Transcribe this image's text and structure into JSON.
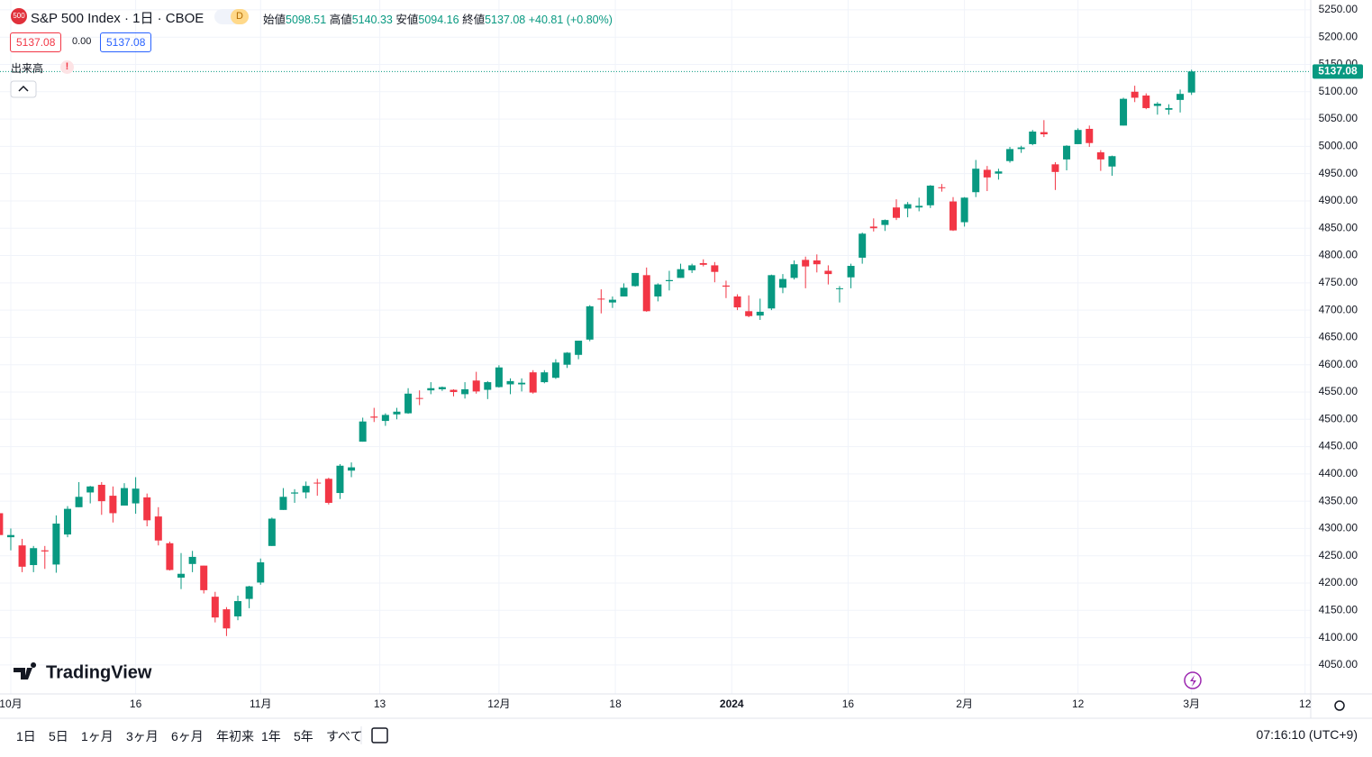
{
  "header": {
    "badge": "500",
    "symbol": "S&P 500 Index · 1日 · CBOE",
    "interval": "D",
    "open_label": "始値",
    "high_label": "高値",
    "low_label": "安値",
    "close_label": "終値",
    "change": "+40.81 (+0.80%)",
    "bid": "5137.08",
    "spread": "0.00",
    "ask": "5137.08",
    "volume_label": "出来高"
  },
  "chart_data": {
    "type": "candlestick",
    "watermark": "TradingView",
    "up_color": "#089981",
    "down_color": "#f23645",
    "grid": true,
    "x": [
      -1,
      0,
      1,
      2,
      3,
      4,
      5,
      6,
      7,
      8,
      9,
      10,
      11,
      12,
      13,
      14,
      15,
      16,
      17,
      18,
      19,
      20,
      21,
      22,
      23,
      24,
      25,
      26,
      27,
      28,
      29,
      30,
      31,
      32,
      33,
      34,
      35,
      36,
      37,
      38,
      39,
      40,
      41,
      42,
      43,
      44,
      45,
      46,
      47,
      48,
      49,
      50,
      51,
      52,
      53,
      54,
      55,
      56,
      57,
      58,
      59,
      60,
      61,
      62,
      63,
      64,
      65,
      66,
      67,
      68,
      69,
      70,
      71,
      72,
      73,
      74,
      75,
      76,
      77,
      78,
      79,
      80,
      81,
      82,
      83,
      84,
      85,
      86,
      87,
      88,
      89,
      90,
      91,
      92,
      93,
      94,
      95,
      96,
      97,
      98,
      99,
      100,
      101,
      102,
      103,
      104
    ],
    "open": [
      4328,
      4284,
      4269,
      4233,
      4260,
      4234,
      4289,
      4339,
      4366,
      4380,
      4360,
      4342,
      4346,
      4357,
      4322,
      4273,
      4210,
      4235,
      4232,
      4175,
      4152,
      4139,
      4171,
      4201,
      4268,
      4334,
      4364,
      4366,
      4384,
      4391,
      4365,
      4406,
      4459,
      4505,
      4497,
      4509,
      4511,
      4539,
      4553,
      4555,
      4554,
      4546,
      4571,
      4554,
      4559,
      4564,
      4564,
      4586,
      4568,
      4576,
      4600,
      4618,
      4646,
      4721,
      4714,
      4725,
      4744,
      4764,
      4725,
      4753,
      4759,
      4773,
      4786,
      4782,
      4745,
      4725,
      4698,
      4690,
      4703,
      4741,
      4759,
      4792,
      4791,
      4772,
      4739,
      4760,
      4796,
      4853,
      4856,
      4888,
      4886,
      4888,
      4892,
      4925,
      4899,
      4861,
      4916,
      4957,
      4950,
      4973,
      4995,
      5004,
      5026,
      4967,
      4976,
      5004,
      5032,
      4989,
      4963,
      5038,
      5100,
      5093,
      5074,
      5067,
      5085,
      5098.51
    ],
    "high": [
      4333,
      4300,
      4281,
      4268,
      4268,
      4324,
      4341,
      4385,
      4378,
      4385,
      4377,
      4383,
      4394,
      4364,
      4339,
      4276,
      4255,
      4259,
      4232,
      4184,
      4156,
      4177,
      4195,
      4245,
      4320,
      4374,
      4372,
      4386,
      4391,
      4393,
      4418,
      4421,
      4503,
      4521,
      4511,
      4521,
      4557,
      4553,
      4568,
      4560,
      4555,
      4568,
      4587,
      4570,
      4599,
      4575,
      4575,
      4590,
      4590,
      4610,
      4623,
      4644,
      4709,
      4738,
      4725,
      4749,
      4768,
      4778,
      4749,
      4772,
      4785,
      4785,
      4793,
      4788,
      4754,
      4729,
      4727,
      4721,
      4765,
      4766,
      4791,
      4798,
      4802,
      4782,
      4744,
      4785,
      4842,
      4868,
      4866,
      4903,
      4898,
      4906,
      4929,
      4931,
      4907,
      4907,
      4975,
      4964,
      4959,
      4999,
      5001,
      5030,
      5048,
      4971,
      5002,
      5033,
      5038,
      4993,
      4983,
      5089,
      5111,
      5097,
      5081,
      5077,
      5104,
      5140.33
    ],
    "low": [
      4274,
      4260,
      4220,
      4220,
      4226,
      4219,
      4284,
      4339,
      4346,
      4325,
      4311,
      4342,
      4327,
      4304,
      4269,
      4223,
      4189,
      4220,
      4181,
      4128,
      4103,
      4132,
      4154,
      4197,
      4268,
      4334,
      4347,
      4355,
      4360,
      4344,
      4354,
      4394,
      4459,
      4495,
      4488,
      4500,
      4510,
      4526,
      4546,
      4552,
      4542,
      4538,
      4547,
      4537,
      4558,
      4546,
      4551,
      4547,
      4566,
      4574,
      4594,
      4610,
      4643,
      4694,
      4704,
      4725,
      4743,
      4697,
      4716,
      4736,
      4759,
      4768,
      4780,
      4751,
      4722,
      4700,
      4687,
      4682,
      4700,
      4731,
      4756,
      4740,
      4769,
      4747,
      4714,
      4740,
      4785,
      4844,
      4845,
      4865,
      4870,
      4881,
      4887,
      4917,
      4845,
      4853,
      4907,
      4918,
      4939,
      4970,
      4988,
      5002,
      5017,
      4920,
      4956,
      5004,
      4999,
      4955,
      4946,
      5038,
      5081,
      5068,
      5058,
      5058,
      5062,
      5094.16
    ],
    "close": [
      4288,
      4288,
      4230,
      4264,
      4258,
      4309,
      4336,
      4358,
      4377,
      4350,
      4328,
      4374,
      4373,
      4315,
      4278,
      4224,
      4217,
      4248,
      4187,
      4137,
      4117,
      4167,
      4194,
      4238,
      4318,
      4358,
      4366,
      4378,
      4383,
      4347,
      4415,
      4412,
      4496,
      4503,
      4508,
      4514,
      4547,
      4538,
      4557,
      4559,
      4550,
      4555,
      4551,
      4568,
      4595,
      4570,
      4567,
      4549,
      4586,
      4604,
      4622,
      4644,
      4707,
      4720,
      4719,
      4741,
      4768,
      4698,
      4747,
      4755,
      4775,
      4782,
      4783,
      4770,
      4743,
      4705,
      4689,
      4697,
      4764,
      4757,
      4784,
      4780,
      4784,
      4766,
      4740,
      4781,
      4840,
      4850,
      4865,
      4869,
      4894,
      4891,
      4928,
      4924,
      4846,
      4906,
      4959,
      4943,
      4954,
      4995,
      4998,
      5027,
      5022,
      4953,
      5001,
      5030,
      5006,
      4976,
      4982,
      5087,
      5089,
      5070,
      5078,
      5070,
      5096,
      5137.08
    ],
    "xlim": [
      -0.95,
      114.5
    ],
    "xticks": [
      {
        "value": 0,
        "label": "10月"
      },
      16,
      {
        "value": 22,
        "label": "11月"
      },
      13,
      {
        "value": 43,
        "label": "12月"
      },
      18,
      2024,
      16,
      {
        "value": 84,
        "label": "2月"
      },
      12,
      {
        "value": 104,
        "label": "3月"
      },
      12
    ],
    "ylim": [
      3997,
      5268
    ],
    "yticks": [
      {
        "value": 4050,
        "label": "4050.00"
      },
      {
        "value": 4100,
        "label": "4100.00"
      },
      {
        "value": 4150,
        "label": "4150.00"
      },
      {
        "value": 4200,
        "label": "4200.00"
      },
      {
        "value": 4250,
        "label": "4250.00"
      },
      {
        "value": 4300,
        "label": "4300.00"
      },
      {
        "value": 4350,
        "label": "4350.00"
      },
      {
        "value": 4400,
        "label": "4400.00"
      },
      {
        "value": 4450,
        "label": "4450.00"
      },
      {
        "value": 4500,
        "label": "4500.00"
      },
      {
        "value": 4550,
        "label": "4550.00"
      },
      {
        "value": 4600,
        "label": "4600.00"
      },
      {
        "value": 4650,
        "label": "4650.00"
      },
      {
        "value": 4700,
        "label": "4700.00"
      },
      {
        "value": 4750,
        "label": "4750.00"
      },
      {
        "value": 4800,
        "label": "4800.00"
      },
      {
        "value": 4850,
        "label": "4850.00"
      },
      {
        "value": 4900,
        "label": "4900.00"
      },
      {
        "value": 4950,
        "label": "4950.00"
      },
      {
        "value": 5000,
        "label": "5000.00"
      },
      {
        "value": 5050,
        "label": "5050.00"
      },
      {
        "value": 5100,
        "label": "5100.00"
      },
      {
        "value": 5150,
        "label": "5150.00"
      },
      {
        "value": 5200,
        "label": "5200.00"
      },
      {
        "value": 5250,
        "label": "5250.00"
      }
    ]
  },
  "toolbar": {
    "ranges": [
      "1日",
      "5日",
      "1ヶ月",
      "3ヶ月",
      "6ヶ月",
      "年初来",
      "1年",
      "5年",
      "すべて"
    ],
    "clock": "07:16:10 (UTC+9)"
  }
}
